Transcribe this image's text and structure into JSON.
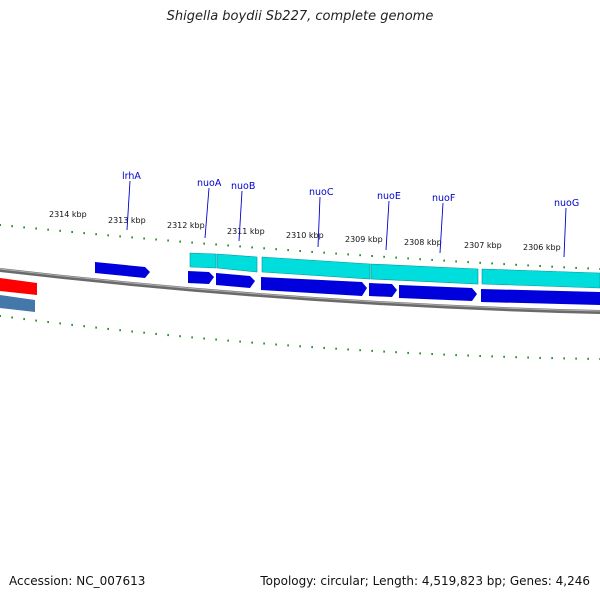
{
  "title": "Shigella boydii Sb227, complete genome",
  "footer": {
    "accession": "Accession: NC_007613",
    "topology": "Topology: circular; Length: 4,519,823 bp; Genes: 4,246"
  },
  "tick_labels": [
    "2314 kbp",
    "2313 kbp",
    "2312 kbp",
    "2311 kbp",
    "2310 kbp",
    "2309 kbp",
    "2308 kbp",
    "2307 kbp",
    "2306 kbp"
  ],
  "gene_labels": [
    "lrhA",
    "nuoA",
    "nuoB",
    "nuoC",
    "nuoE",
    "nuoF",
    "nuoG"
  ],
  "colors": {
    "backbone": "#808080",
    "cds": "#0000dd",
    "gene": "#00dddd",
    "rrna": "#ff0000",
    "other": "#4477aa",
    "ticks": "#007700",
    "label_lines": "#0000cc"
  }
}
